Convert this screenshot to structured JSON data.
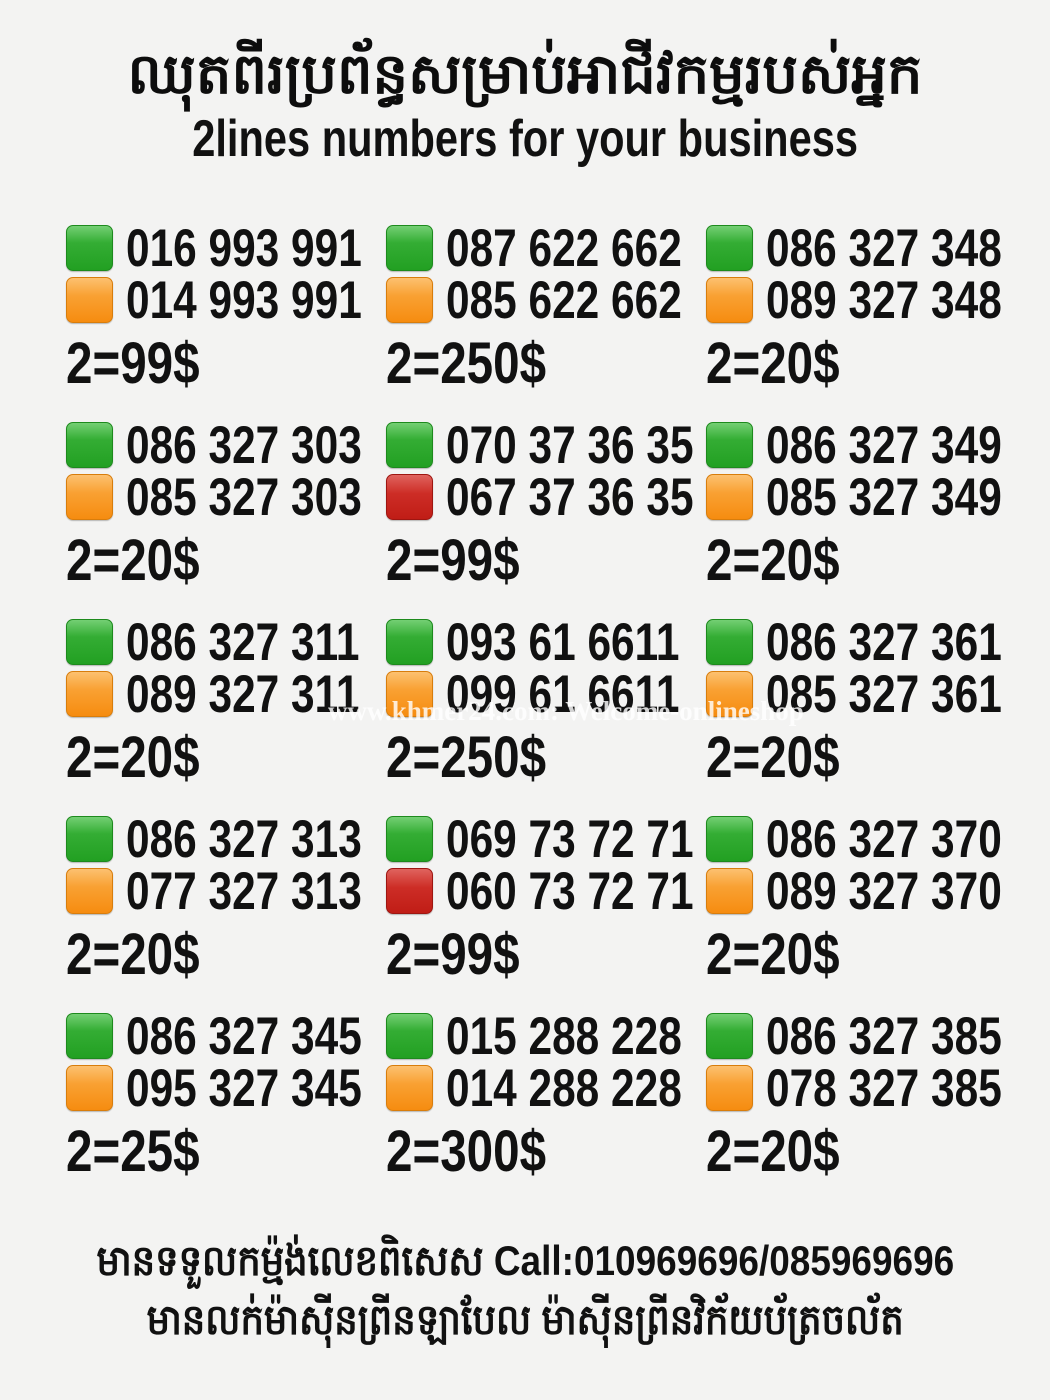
{
  "title": {
    "khmer": "ឈុតពីរប្រព័ន្ធសម្រាប់អាជីវកម្មរបស់អ្នក",
    "english": "2lines numbers for your business"
  },
  "watermark": "www.khmer24.com: Welcome-onlineshop",
  "colors": {
    "green": "#2aa52a",
    "orange": "#f8941d",
    "red": "#c9241d",
    "background": "#f3f3f2",
    "text": "#111111"
  },
  "grid": {
    "cells": [
      {
        "line1": {
          "color": "green",
          "number": "016 993 991"
        },
        "line2": {
          "color": "orange",
          "number": "014 993 991"
        },
        "price": "2=99$"
      },
      {
        "line1": {
          "color": "green",
          "number": "087 622 662"
        },
        "line2": {
          "color": "orange",
          "number": "085 622 662"
        },
        "price": "2=250$"
      },
      {
        "line1": {
          "color": "green",
          "number": "086 327 348"
        },
        "line2": {
          "color": "orange",
          "number": "089 327 348"
        },
        "price": "2=20$"
      },
      {
        "line1": {
          "color": "green",
          "number": "086 327 303"
        },
        "line2": {
          "color": "orange",
          "number": "085 327 303"
        },
        "price": "2=20$"
      },
      {
        "line1": {
          "color": "green",
          "number": "070 37 36 35"
        },
        "line2": {
          "color": "red",
          "number": "067 37 36 35"
        },
        "price": "2=99$"
      },
      {
        "line1": {
          "color": "green",
          "number": "086 327 349"
        },
        "line2": {
          "color": "orange",
          "number": "085 327 349"
        },
        "price": "2=20$"
      },
      {
        "line1": {
          "color": "green",
          "number": "086 327 311"
        },
        "line2": {
          "color": "orange",
          "number": "089 327 311"
        },
        "price": "2=20$"
      },
      {
        "line1": {
          "color": "green",
          "number": "093 61 6611"
        },
        "line2": {
          "color": "orange",
          "number": "099 61 6611"
        },
        "price": "2=250$"
      },
      {
        "line1": {
          "color": "green",
          "number": "086 327 361"
        },
        "line2": {
          "color": "orange",
          "number": "085 327 361"
        },
        "price": "2=20$"
      },
      {
        "line1": {
          "color": "green",
          "number": "086 327 313"
        },
        "line2": {
          "color": "orange",
          "number": "077 327 313"
        },
        "price": "2=20$"
      },
      {
        "line1": {
          "color": "green",
          "number": "069 73 72 71"
        },
        "line2": {
          "color": "red",
          "number": "060 73 72 71"
        },
        "price": "2=99$"
      },
      {
        "line1": {
          "color": "green",
          "number": "086 327 370"
        },
        "line2": {
          "color": "orange",
          "number": "089 327 370"
        },
        "price": "2=20$"
      },
      {
        "line1": {
          "color": "green",
          "number": "086 327 345"
        },
        "line2": {
          "color": "orange",
          "number": "095 327 345"
        },
        "price": "2=25$"
      },
      {
        "line1": {
          "color": "green",
          "number": "015 288 228"
        },
        "line2": {
          "color": "orange",
          "number": "014 288 228"
        },
        "price": "2=300$"
      },
      {
        "line1": {
          "color": "green",
          "number": "086 327 385"
        },
        "line2": {
          "color": "orange",
          "number": "078 327 385"
        },
        "price": "2=20$"
      }
    ]
  },
  "footer": {
    "line1": "មានទទួលកម្ម៉ង់លេខពិសេស Call:010969696/085969696",
    "line2": "មានលក់ម៉ាស៊ីនព្រីនឡាបែល ម៉ាស៊ីនព្រីនវិក័យប័ត្រចល័ត"
  }
}
